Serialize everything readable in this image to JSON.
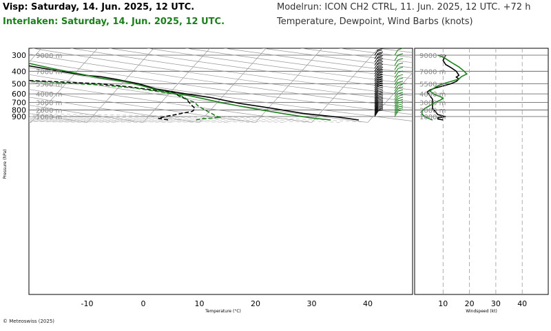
{
  "header": {
    "title_line1": "Visp: Saturday, 14. Jun. 2025, 12 UTC.",
    "title_line2": "Interlaken: Saturday, 14. Jun. 2025, 12 UTC.",
    "model_line": "Modelrun: ICON CH2 CTRL, 11. Jun. 2025, 12 UTC. +72 h",
    "vars_line": "Temperature, Dewpoint, Wind Barbs (knots)"
  },
  "footer": {
    "copyright": "© Meteoswiss (2025)"
  },
  "colors": {
    "visp": "#000000",
    "interlaken": "#1a7f1a",
    "grid": "#999999"
  },
  "chart_data": [
    {
      "type": "line",
      "subtype": "skew-T log-P diagram",
      "xlabel": "Temperature (°C)",
      "ylabel": "Pressure (hPa)",
      "x_ticks": [
        "-10",
        "0",
        "10",
        "20",
        "30",
        "40"
      ],
      "y_ticks": [
        "300",
        "400",
        "500",
        "600",
        "700",
        "800",
        "900"
      ],
      "height_labels": [
        "9000 m",
        "7000 m",
        "5500 m",
        "4000 m",
        "3000 m",
        "2000 m",
        "1000 m"
      ],
      "xlim": [
        -20,
        45
      ],
      "ylim": [
        980,
        290
      ],
      "series": [
        {
          "name": "Visp temperature",
          "station": "visp",
          "style": "solid",
          "points": [
            [
              38,
              957
            ],
            [
              34,
              910
            ],
            [
              27,
              850
            ],
            [
              21,
              780
            ],
            [
              14,
              710
            ],
            [
              8,
              640
            ],
            [
              3,
              600
            ],
            [
              -3,
              550
            ],
            [
              -7,
              500
            ],
            [
              -12,
              460
            ],
            [
              -15,
              440
            ],
            [
              -18,
              430
            ],
            [
              -23,
              400
            ],
            [
              -30,
              360
            ],
            [
              -41,
              300
            ]
          ]
        },
        {
          "name": "Visp dewpoint",
          "station": "visp",
          "style": "dash",
          "points": [
            [
              4,
              955
            ],
            [
              2,
              930
            ],
            [
              3,
              900
            ],
            [
              5,
              860
            ],
            [
              7,
              820
            ],
            [
              7,
              780
            ],
            [
              6,
              740
            ],
            [
              5,
              700
            ],
            [
              4,
              660
            ],
            [
              2,
              620
            ],
            [
              1,
              590
            ],
            [
              -2,
              570
            ],
            [
              -8,
              530
            ],
            [
              -14,
              500
            ],
            [
              -28,
              470
            ],
            [
              -38,
              450
            ],
            [
              -40,
              430
            ],
            [
              -42,
              400
            ],
            [
              -40,
              380
            ],
            [
              -42,
              340
            ],
            [
              -50,
              300
            ]
          ]
        },
        {
          "name": "Interlaken temperature",
          "station": "interlaken",
          "style": "solid",
          "points": [
            [
              33,
              957
            ],
            [
              29,
              920
            ],
            [
              24,
              860
            ],
            [
              19,
              800
            ],
            [
              14,
              740
            ],
            [
              9,
              680
            ],
            [
              4,
              620
            ],
            [
              -1,
              580
            ],
            [
              -6,
              520
            ],
            [
              -10,
              480
            ],
            [
              -15,
              450
            ],
            [
              -19,
              420
            ],
            [
              -25,
              380
            ],
            [
              -31,
              340
            ],
            [
              -40,
              300
            ]
          ]
        },
        {
          "name": "Interlaken dewpoint",
          "station": "interlaken",
          "style": "dash",
          "points": [
            [
              9,
              955
            ],
            [
              10,
              935
            ],
            [
              13,
              915
            ],
            [
              12,
              895
            ],
            [
              11,
              860
            ],
            [
              10,
              830
            ],
            [
              9,
              800
            ],
            [
              8,
              770
            ],
            [
              7,
              740
            ],
            [
              6,
              700
            ],
            [
              4,
              660
            ],
            [
              3,
              630
            ],
            [
              1,
              600
            ],
            [
              -3,
              570
            ],
            [
              -7,
              540
            ],
            [
              -14,
              510
            ],
            [
              -22,
              490
            ],
            [
              -30,
              470
            ],
            [
              -36,
              450
            ],
            [
              -39,
              430
            ],
            [
              -38,
              400
            ],
            [
              -36,
              380
            ],
            [
              -34,
              350
            ],
            [
              -33,
              320
            ],
            [
              -38,
              300
            ]
          ]
        }
      ],
      "wind_barbs": {
        "visp": {
          "pressures": [
            900,
            880,
            860,
            840,
            820,
            800,
            780,
            760,
            740,
            720,
            700,
            680,
            660,
            640,
            620,
            600,
            580,
            560,
            540,
            520,
            500,
            480,
            460,
            440,
            420,
            400,
            380,
            360,
            340,
            320,
            300
          ],
          "speed_kt": [
            5,
            5,
            5,
            5,
            5,
            10,
            10,
            10,
            10,
            10,
            10,
            10,
            10,
            10,
            10,
            10,
            10,
            15,
            15,
            15,
            15,
            15,
            15,
            15,
            15,
            15,
            15,
            15,
            15,
            15,
            15
          ]
        },
        "interlaken": {
          "pressures": [
            900,
            870,
            840,
            810,
            780,
            750,
            720,
            690,
            660,
            630,
            600,
            570,
            540,
            510,
            480,
            450,
            420,
            390,
            360,
            330,
            300
          ],
          "speed_kt": [
            5,
            5,
            5,
            5,
            5,
            5,
            5,
            5,
            5,
            10,
            5,
            5,
            5,
            5,
            5,
            5,
            5,
            10,
            10,
            10,
            10
          ]
        }
      }
    },
    {
      "type": "line",
      "subtype": "wind speed profile",
      "xlabel": "Windspeed (kt)",
      "x_ticks": [
        "10",
        "20",
        "30",
        "40"
      ],
      "xlim": [
        0,
        45
      ],
      "y_axis": "pressure (shared with skew-T)",
      "series": [
        {
          "name": "Visp windspeed",
          "station": "visp",
          "points": [
            [
              10,
              957
            ],
            [
              8,
              940
            ],
            [
              8,
              920
            ],
            [
              11,
              900
            ],
            [
              8,
              870
            ],
            [
              7,
              820
            ],
            [
              6,
              780
            ],
            [
              6,
              740
            ],
            [
              6,
              700
            ],
            [
              6,
              660
            ],
            [
              5,
              620
            ],
            [
              4,
              580
            ],
            [
              5,
              560
            ],
            [
              7,
              540
            ],
            [
              10,
              520
            ],
            [
              13,
              500
            ],
            [
              15,
              480
            ],
            [
              16,
              460
            ],
            [
              15,
              445
            ],
            [
              16,
              430
            ],
            [
              15,
              400
            ],
            [
              13,
              375
            ],
            [
              11,
              355
            ],
            [
              10,
              330
            ],
            [
              11,
              300
            ]
          ]
        },
        {
          "name": "Interlaken windspeed",
          "station": "interlaken",
          "points": [
            [
              6,
              957
            ],
            [
              5,
              940
            ],
            [
              3,
              900
            ],
            [
              2,
              860
            ],
            [
              2,
              820
            ],
            [
              3,
              780
            ],
            [
              5,
              740
            ],
            [
              7,
              700
            ],
            [
              9,
              670
            ],
            [
              10,
              650
            ],
            [
              9,
              630
            ],
            [
              7,
              610
            ],
            [
              6,
              590
            ],
            [
              5,
              570
            ],
            [
              6,
              550
            ],
            [
              8,
              520
            ],
            [
              10,
              500
            ],
            [
              13,
              480
            ],
            [
              16,
              460
            ],
            [
              17,
              440
            ],
            [
              19,
              420
            ],
            [
              18,
              400
            ],
            [
              16,
              370
            ],
            [
              14,
              350
            ],
            [
              12,
              330
            ],
            [
              10,
              310
            ],
            [
              8,
              300
            ]
          ]
        }
      ]
    }
  ]
}
